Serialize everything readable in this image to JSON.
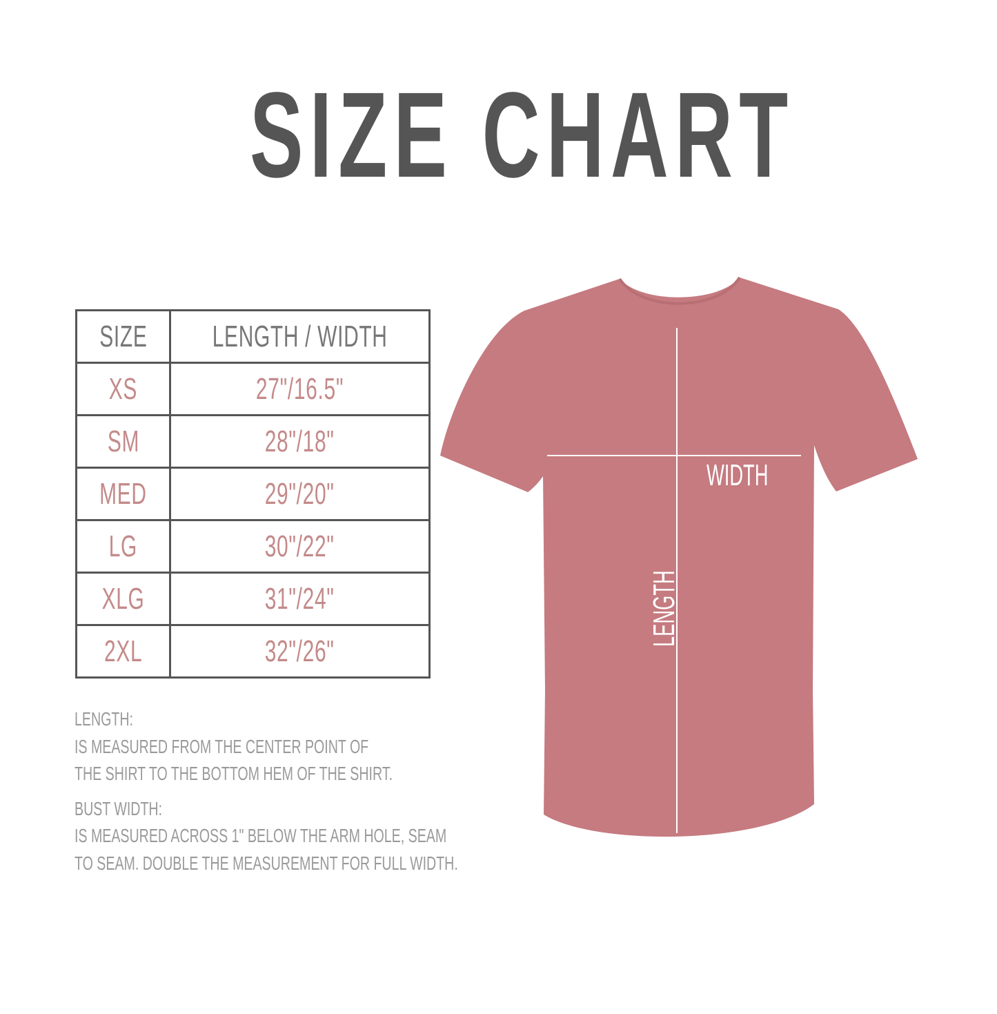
{
  "title": "SIZE CHART",
  "table": {
    "headers": [
      "SIZE",
      "LENGTH / WIDTH"
    ],
    "rows": [
      {
        "size": "XS",
        "measure": "27\"/16.5\""
      },
      {
        "size": "SM",
        "measure": "28\"/18\""
      },
      {
        "size": "MED",
        "measure": "29\"/20\""
      },
      {
        "size": "LG",
        "measure": "30\"/22\""
      },
      {
        "size": "XLG",
        "measure": "31\"/24\""
      },
      {
        "size": "2XL",
        "measure": "32\"/26\""
      }
    ]
  },
  "notes": {
    "length_heading": "LENGTH:",
    "length_line1": "IS MEASURED FROM THE CENTER POINT OF",
    "length_line2": "THE SHIRT TO THE BOTTOM HEM OF THE SHIRT.",
    "width_heading": "BUST WIDTH:",
    "width_line1": "IS MEASURED ACROSS  1\" BELOW THE ARM HOLE, SEAM",
    "width_line2": "TO SEAM. DOUBLE THE MEASUREMENT FOR FULL WIDTH."
  },
  "shirt": {
    "width_label": "WIDTH",
    "length_label": "LENGTH",
    "color": "#c57b80"
  },
  "colors": {
    "title": "#555555",
    "table_values": "#c48a8a",
    "notes": "#9a9a9a"
  }
}
